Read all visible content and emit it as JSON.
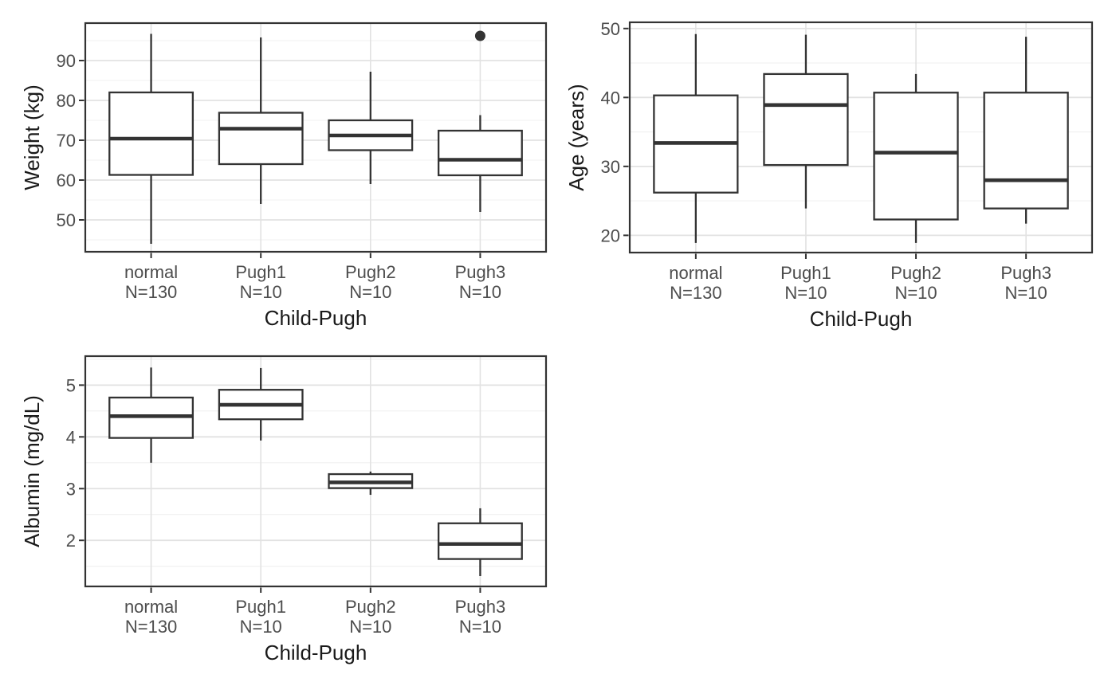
{
  "figure": {
    "description": "Three box-and-whisker plots comparing clinical variables across Child-Pugh groups",
    "xlabel_shared": "Child-Pugh"
  },
  "style": {
    "background": "#ffffff",
    "box_stroke": "#333333",
    "box_fill": "#ffffff",
    "grid_major": "#e2e2e2",
    "grid_minor": "#f0f0f0",
    "panel_border": "#333333",
    "tick_mark": "#333333",
    "tick_label_color": "#4d4d4d",
    "axis_title_color": "#1a1a1a"
  },
  "chart_data": [
    {
      "type": "boxplot",
      "title": "",
      "xlabel": "Child-Pugh",
      "ylabel": "Weight (kg)",
      "categories": [
        "normal\nN=130",
        "Pugh1\nN=10",
        "Pugh2\nN=10",
        "Pugh3\nN=10"
      ],
      "yticks": [
        50,
        60,
        70,
        80,
        90
      ],
      "ylim": [
        42.0,
        99.4
      ],
      "grid": "horizontal major+minor, vertical major at categories",
      "legend": "none",
      "series": [
        {
          "name": "normal N=130",
          "whisker_low": 44.0,
          "q1": 61.3,
          "median": 70.4,
          "q3": 82.0,
          "whisker_high": 96.7,
          "outliers": []
        },
        {
          "name": "Pugh1 N=10",
          "whisker_low": 54.0,
          "q1": 64.0,
          "median": 72.9,
          "q3": 76.9,
          "whisker_high": 95.8,
          "outliers": []
        },
        {
          "name": "Pugh2 N=10",
          "whisker_low": 59.0,
          "q1": 67.5,
          "median": 71.2,
          "q3": 75.0,
          "whisker_high": 87.2,
          "outliers": []
        },
        {
          "name": "Pugh3 N=10",
          "whisker_low": 52.0,
          "q1": 61.2,
          "median": 65.1,
          "q3": 72.4,
          "whisker_high": 76.3,
          "outliers": [
            96.2
          ]
        }
      ]
    },
    {
      "type": "boxplot",
      "title": "",
      "xlabel": "Child-Pugh",
      "ylabel": "Age (years)",
      "categories": [
        "normal\nN=130",
        "Pugh1\nN=10",
        "Pugh2\nN=10",
        "Pugh3\nN=10"
      ],
      "yticks": [
        20,
        30,
        40,
        50
      ],
      "ylim": [
        17.5,
        50.9
      ],
      "grid": "horizontal major+minor, vertical major at categories",
      "legend": "none",
      "series": [
        {
          "name": "normal N=130",
          "whisker_low": 18.9,
          "q1": 26.2,
          "median": 33.4,
          "q3": 40.3,
          "whisker_high": 49.2,
          "outliers": []
        },
        {
          "name": "Pugh1 N=10",
          "whisker_low": 23.9,
          "q1": 30.2,
          "median": 38.9,
          "q3": 43.4,
          "whisker_high": 49.1,
          "outliers": []
        },
        {
          "name": "Pugh2 N=10",
          "whisker_low": 18.9,
          "q1": 22.3,
          "median": 32.0,
          "q3": 40.7,
          "whisker_high": 43.4,
          "outliers": []
        },
        {
          "name": "Pugh3 N=10",
          "whisker_low": 21.7,
          "q1": 23.9,
          "median": 28.0,
          "q3": 40.7,
          "whisker_high": 48.8,
          "outliers": []
        }
      ]
    },
    {
      "type": "boxplot",
      "title": "",
      "xlabel": "Child-Pugh",
      "ylabel": "Albumin (mg/dL)",
      "categories": [
        "normal\nN=130",
        "Pugh1\nN=10",
        "Pugh2\nN=10",
        "Pugh3\nN=10"
      ],
      "yticks": [
        2,
        3,
        4,
        5
      ],
      "ylim": [
        1.11,
        5.56
      ],
      "grid": "horizontal major+minor, vertical major at categories",
      "legend": "none",
      "series": [
        {
          "name": "normal N=130",
          "whisker_low": 3.5,
          "q1": 3.98,
          "median": 4.4,
          "q3": 4.76,
          "whisker_high": 5.34,
          "outliers": []
        },
        {
          "name": "Pugh1 N=10",
          "whisker_low": 3.93,
          "q1": 4.34,
          "median": 4.62,
          "q3": 4.91,
          "whisker_high": 5.33,
          "outliers": []
        },
        {
          "name": "Pugh2 N=10",
          "whisker_low": 2.88,
          "q1": 3.01,
          "median": 3.12,
          "q3": 3.28,
          "whisker_high": 3.33,
          "outliers": []
        },
        {
          "name": "Pugh3 N=10",
          "whisker_low": 1.31,
          "q1": 1.64,
          "median": 1.93,
          "q3": 2.33,
          "whisker_high": 2.62,
          "outliers": []
        }
      ]
    }
  ]
}
